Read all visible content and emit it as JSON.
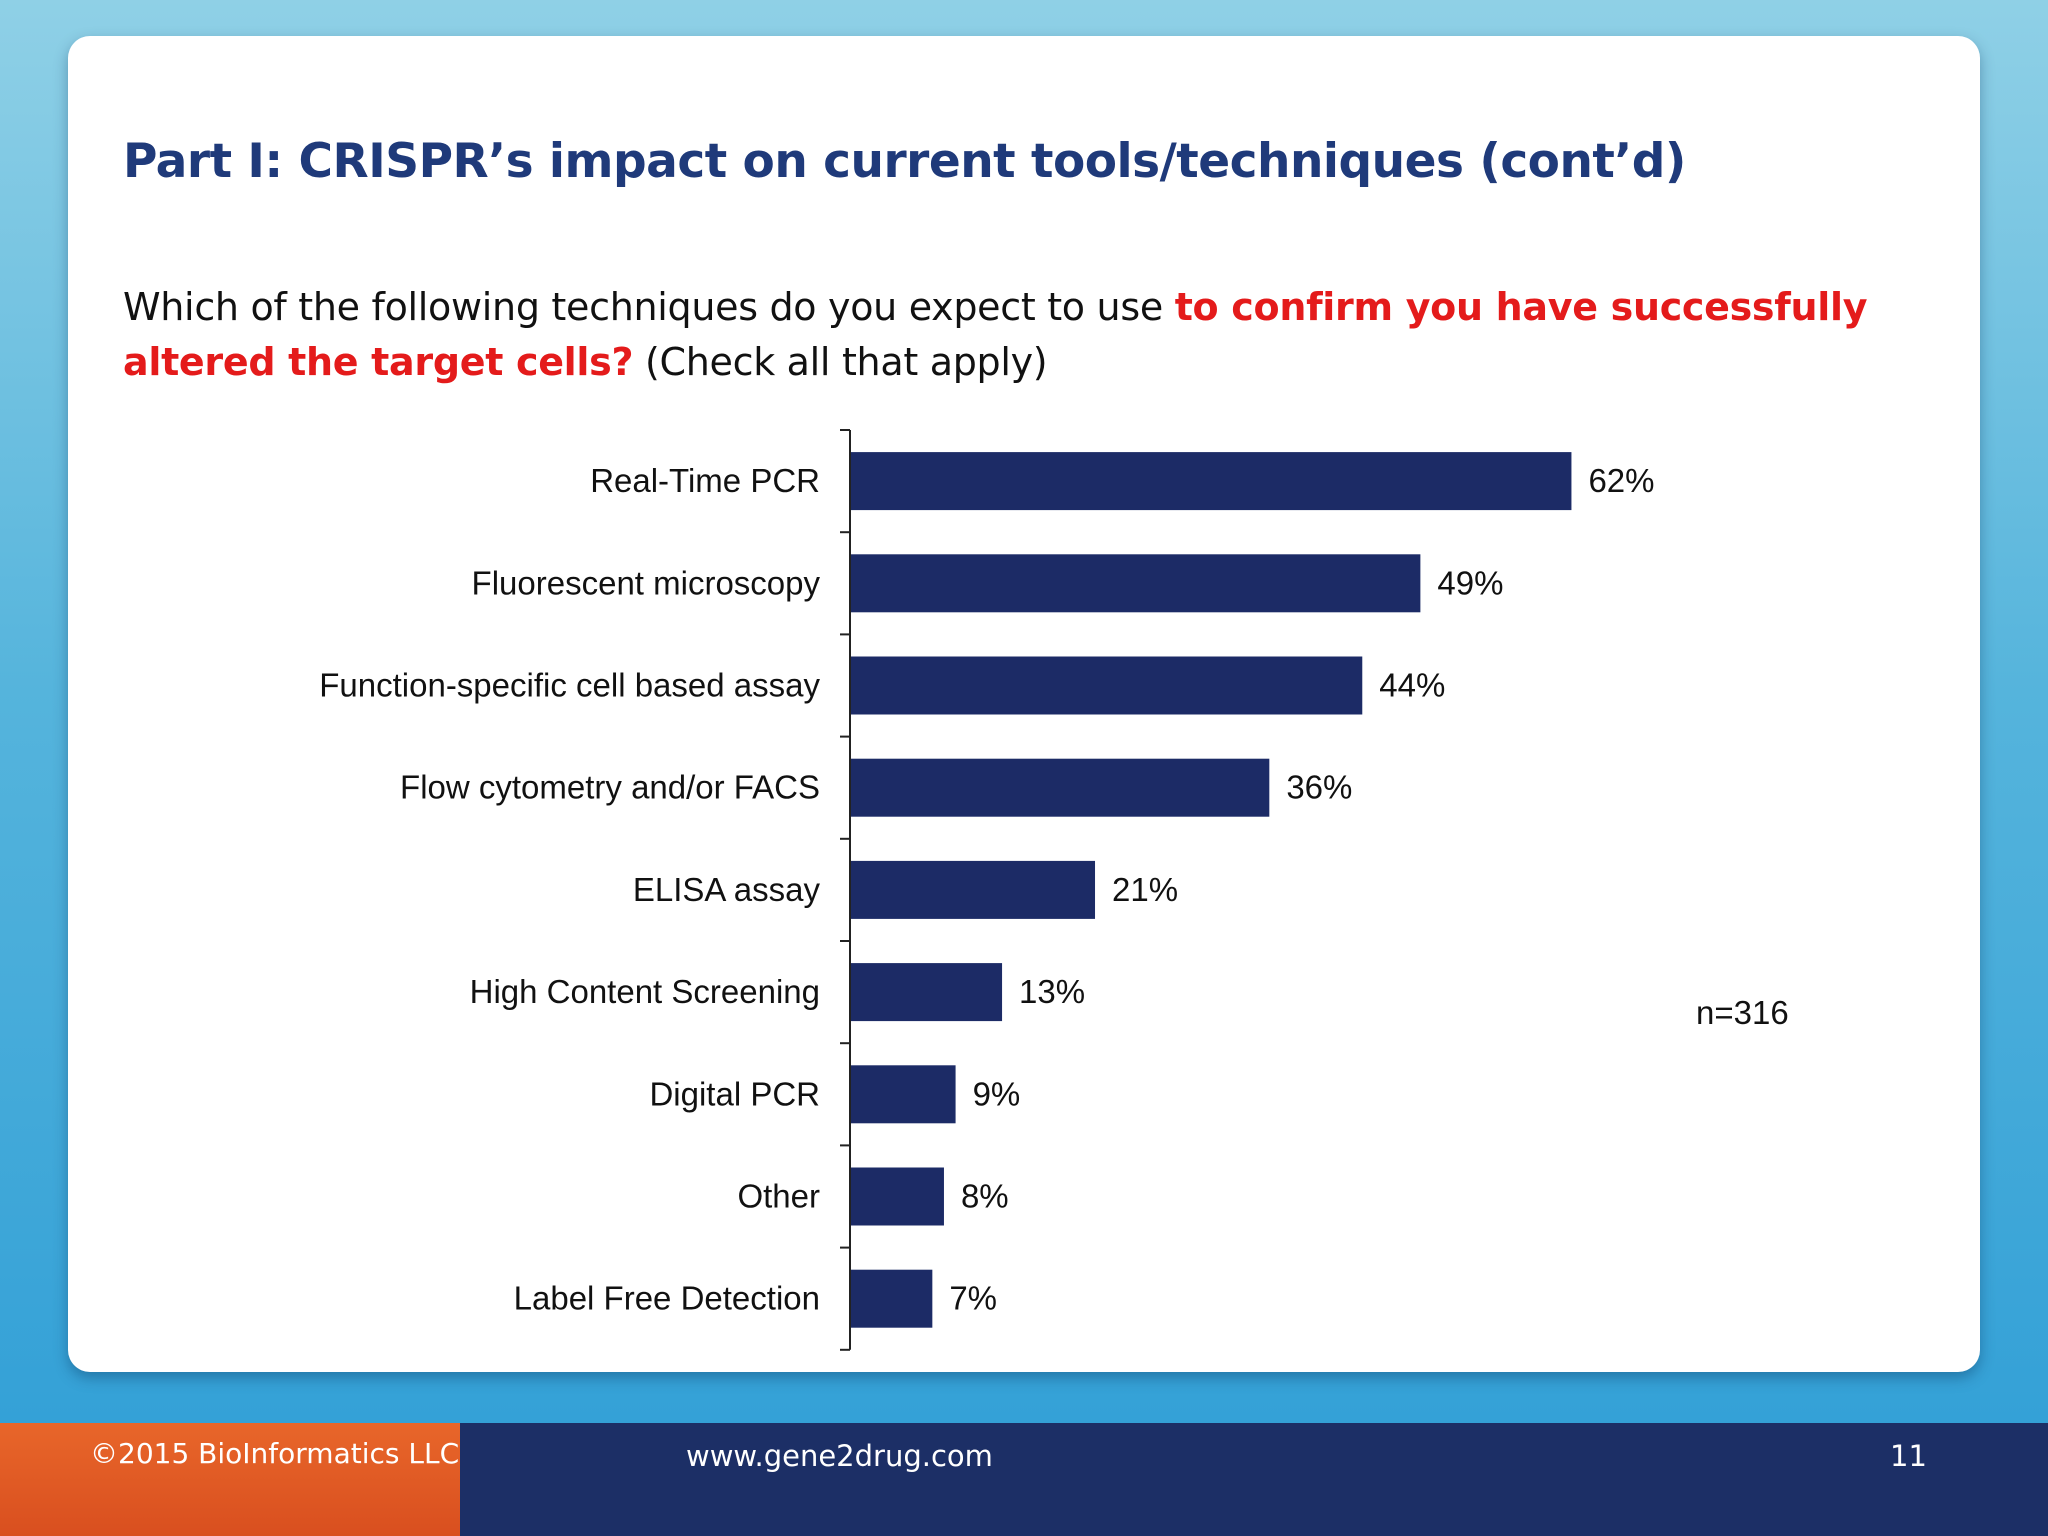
{
  "slide": {
    "title": "Part I: CRISPR’s impact on current tools/techniques (cont’d)",
    "question_before": "Which of the following techniques do you expect to use ",
    "question_emphasis": "to confirm you have successfully altered the target cells?",
    "question_after": " (Check all that apply)",
    "sample_size": "n=316"
  },
  "colors": {
    "bar": "#1c2b66",
    "title": "#1f3a7a",
    "emphasis": "#e41b1b",
    "footer_dark": "#1c2f66",
    "footer_accent": "#e05a25"
  },
  "chart_data": {
    "type": "bar",
    "orientation": "horizontal",
    "categories": [
      "Real-Time PCR",
      "Fluorescent microscopy",
      "Function-specific cell based assay",
      "Flow cytometry and/or FACS",
      "ELISA assay",
      "High Content Screening",
      "Digital PCR",
      "Other",
      "Label Free Detection"
    ],
    "values": [
      62,
      49,
      44,
      36,
      21,
      13,
      9,
      8,
      7
    ],
    "value_labels": [
      "62%",
      "49%",
      "44%",
      "36%",
      "21%",
      "13%",
      "9%",
      "8%",
      "7%"
    ],
    "unit": "%",
    "xlim": [
      0,
      100
    ],
    "grid": false,
    "legend": "none"
  },
  "footer": {
    "copyright": "©2015 BioInformatics LLC",
    "url": "www.gene2drug.com",
    "page_number": "11"
  }
}
